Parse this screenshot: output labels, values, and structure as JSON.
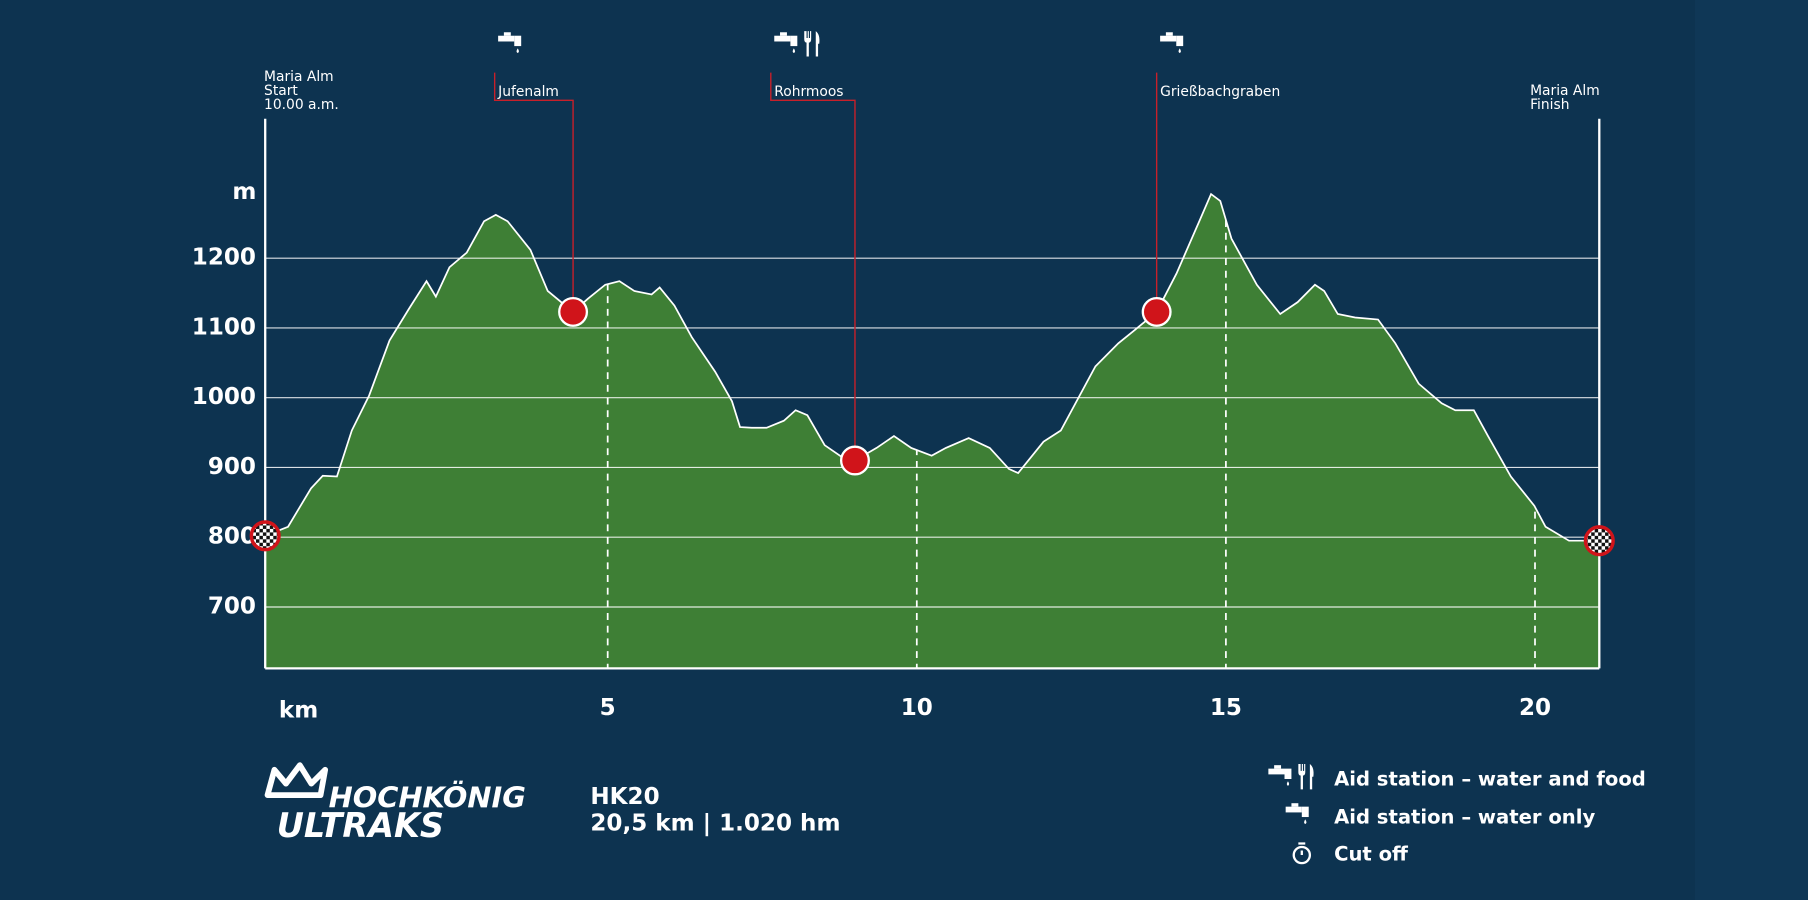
{
  "chart_data": {
    "type": "area",
    "x": [
      -0.54,
      -0.17,
      0.2,
      0.39,
      0.62,
      0.86,
      1.14,
      1.47,
      1.79,
      2.07,
      2.22,
      2.44,
      2.72,
      3.0,
      3.19,
      3.38,
      3.75,
      4.03,
      4.44,
      4.68,
      4.96,
      5.19,
      5.43,
      5.71,
      5.84,
      6.08,
      6.36,
      6.74,
      7.01,
      7.14,
      7.33,
      7.57,
      7.85,
      8.04,
      8.23,
      8.51,
      8.79,
      9.0,
      9.35,
      9.63,
      9.91,
      10.24,
      10.47,
      10.84,
      11.18,
      11.49,
      11.64,
      12.05,
      12.33,
      12.89,
      13.26,
      13.54,
      13.88,
      14.2,
      14.57,
      14.76,
      14.91,
      15.09,
      15.5,
      15.88,
      16.16,
      16.44,
      16.59,
      16.81,
      17.09,
      17.46,
      17.74,
      18.12,
      18.49,
      18.71,
      19.01,
      19.24,
      19.61,
      19.99,
      20.17,
      20.55,
      21.04
    ],
    "values": [
      802,
      815,
      870,
      888,
      887,
      953,
      1003,
      1082,
      1128,
      1167,
      1145,
      1187,
      1208,
      1253,
      1262,
      1253,
      1212,
      1153,
      1123,
      1142,
      1162,
      1167,
      1153,
      1148,
      1158,
      1132,
      1087,
      1037,
      995,
      958,
      957,
      957,
      967,
      982,
      975,
      932,
      915,
      910,
      928,
      945,
      928,
      917,
      928,
      942,
      928,
      898,
      892,
      937,
      953,
      1045,
      1078,
      1098,
      1123,
      1178,
      1253,
      1292,
      1282,
      1228,
      1162,
      1120,
      1137,
      1162,
      1153,
      1120,
      1115,
      1112,
      1078,
      1020,
      992,
      982,
      982,
      945,
      887,
      845,
      815,
      795,
      795
    ],
    "color": "#3e7f35",
    "line_color": "#ffffff",
    "xlim": [
      -0.54,
      21.04
    ],
    "ylim": [
      612,
      1400
    ],
    "xticks": [
      5,
      10,
      15,
      20
    ],
    "yticks": [
      700,
      800,
      900,
      1000,
      1100,
      1200
    ],
    "xlabel": "km",
    "ylabel": "m",
    "grid": true,
    "start_label": [
      "Maria Alm",
      "Start",
      "10.00 a.m."
    ],
    "finish_label": [
      "Maria Alm",
      "Finish"
    ],
    "stations": [
      {
        "name": "Jufenalm",
        "x": 4.44,
        "value": 1123,
        "food": false
      },
      {
        "name": "Rohrmoos",
        "x": 9.0,
        "value": 910,
        "food": true
      },
      {
        "name": "Grießbachgraben",
        "x": 13.88,
        "value": 1123,
        "food": false
      }
    ]
  },
  "logo": {
    "line1": "HOCHKÖNIG",
    "line2": "ULTRAKS"
  },
  "race": {
    "name": "HK20",
    "stats": "20,5 km | 1.020 hm"
  },
  "legend": [
    "Aid station – water and food",
    "Aid station – water only",
    "Cut off"
  ]
}
